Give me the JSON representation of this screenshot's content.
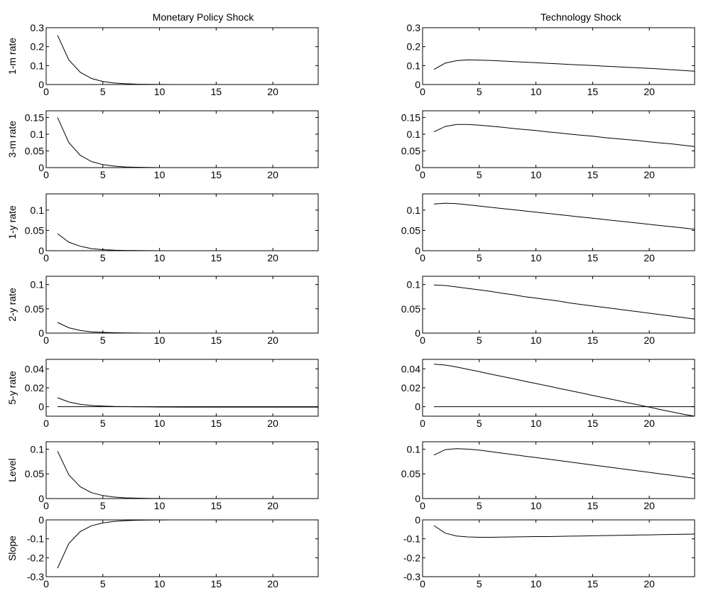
{
  "columns": [
    "Monetary Policy Shock",
    "Technology Shock"
  ],
  "chart_data": [
    {
      "type": "line",
      "column": "Monetary Policy Shock",
      "ylabel": "1-m rate",
      "xlim": [
        0,
        24
      ],
      "ylim": [
        0,
        0.3
      ],
      "yticks": [
        0,
        0.1,
        0.2,
        0.3
      ],
      "xticks": [
        0,
        5,
        10,
        15,
        20
      ],
      "zero_line": false,
      "series": [
        {
          "x": [
            1,
            2,
            3,
            4,
            5,
            6,
            7,
            8,
            9,
            10,
            11,
            12,
            13,
            14,
            15,
            16,
            17,
            18,
            19,
            20,
            21,
            22,
            23,
            24
          ],
          "y": [
            0.26,
            0.13,
            0.065,
            0.032,
            0.016,
            0.008,
            0.004,
            0.002,
            0.001,
            0.0005,
            0,
            0,
            0,
            0,
            0,
            0,
            0,
            0,
            0,
            0,
            0,
            0,
            0,
            0
          ]
        }
      ]
    },
    {
      "type": "line",
      "column": "Technology Shock",
      "ylabel": "",
      "xlim": [
        0,
        24
      ],
      "ylim": [
        0,
        0.3
      ],
      "yticks": [
        0,
        0.1,
        0.2,
        0.3
      ],
      "xticks": [
        0,
        5,
        10,
        15,
        20
      ],
      "zero_line": false,
      "series": [
        {
          "x": [
            1,
            2,
            3,
            4,
            5,
            6,
            7,
            8,
            9,
            10,
            11,
            12,
            13,
            14,
            15,
            16,
            17,
            18,
            19,
            20,
            21,
            22,
            23,
            24
          ],
          "y": [
            0.08,
            0.113,
            0.126,
            0.13,
            0.129,
            0.127,
            0.124,
            0.121,
            0.118,
            0.115,
            0.112,
            0.109,
            0.106,
            0.103,
            0.1,
            0.097,
            0.094,
            0.091,
            0.088,
            0.085,
            0.082,
            0.078,
            0.074,
            0.07
          ]
        }
      ]
    },
    {
      "type": "line",
      "column": "Monetary Policy Shock",
      "ylabel": "3-m rate",
      "xlim": [
        0,
        24
      ],
      "ylim": [
        0,
        0.17
      ],
      "yticks": [
        0,
        0.05,
        0.1,
        0.15
      ],
      "xticks": [
        0,
        5,
        10,
        15,
        20
      ],
      "zero_line": false,
      "series": [
        {
          "x": [
            1,
            2,
            3,
            4,
            5,
            6,
            7,
            8,
            9,
            10,
            11,
            12,
            13,
            14,
            15,
            16,
            17,
            18,
            19,
            20,
            21,
            22,
            23,
            24
          ],
          "y": [
            0.15,
            0.075,
            0.037,
            0.018,
            0.009,
            0.0045,
            0.002,
            0.001,
            0.0005,
            0,
            0,
            0,
            0,
            0,
            0,
            0,
            0,
            0,
            0,
            0,
            0,
            0,
            0,
            0
          ]
        }
      ]
    },
    {
      "type": "line",
      "column": "Technology Shock",
      "ylabel": "",
      "xlim": [
        0,
        24
      ],
      "ylim": [
        0,
        0.17
      ],
      "yticks": [
        0,
        0.05,
        0.1,
        0.15
      ],
      "xticks": [
        0,
        5,
        10,
        15,
        20
      ],
      "zero_line": false,
      "series": [
        {
          "x": [
            1,
            2,
            3,
            4,
            5,
            6,
            7,
            8,
            9,
            10,
            11,
            12,
            13,
            14,
            15,
            16,
            17,
            18,
            19,
            20,
            21,
            22,
            23,
            24
          ],
          "y": [
            0.107,
            0.123,
            0.129,
            0.129,
            0.127,
            0.124,
            0.121,
            0.117,
            0.114,
            0.111,
            0.107,
            0.104,
            0.1,
            0.097,
            0.094,
            0.09,
            0.087,
            0.084,
            0.081,
            0.077,
            0.074,
            0.071,
            0.067,
            0.063
          ]
        }
      ]
    },
    {
      "type": "line",
      "column": "Monetary Policy Shock",
      "ylabel": "1-y rate",
      "xlim": [
        0,
        24
      ],
      "ylim": [
        0,
        0.14
      ],
      "yticks": [
        0,
        0.05,
        0.1
      ],
      "xticks": [
        0,
        5,
        10,
        15,
        20
      ],
      "zero_line": false,
      "series": [
        {
          "x": [
            1,
            2,
            3,
            4,
            5,
            6,
            7,
            8,
            9,
            10,
            11,
            12,
            13,
            14,
            15,
            16,
            17,
            18,
            19,
            20,
            21,
            22,
            23,
            24
          ],
          "y": [
            0.042,
            0.021,
            0.011,
            0.005,
            0.0027,
            0.0013,
            0.0007,
            0.0003,
            0.0002,
            0,
            0,
            0,
            0,
            0,
            0,
            0,
            0,
            0,
            0,
            0,
            0,
            0,
            0,
            0
          ]
        }
      ]
    },
    {
      "type": "line",
      "column": "Technology Shock",
      "ylabel": "",
      "xlim": [
        0,
        24
      ],
      "ylim": [
        0,
        0.14
      ],
      "yticks": [
        0,
        0.05,
        0.1
      ],
      "xticks": [
        0,
        5,
        10,
        15,
        20
      ],
      "zero_line": false,
      "series": [
        {
          "x": [
            1,
            2,
            3,
            4,
            5,
            6,
            7,
            8,
            9,
            10,
            11,
            12,
            13,
            14,
            15,
            16,
            17,
            18,
            19,
            20,
            21,
            22,
            23,
            24
          ],
          "y": [
            0.115,
            0.117,
            0.116,
            0.113,
            0.11,
            0.107,
            0.104,
            0.101,
            0.098,
            0.095,
            0.092,
            0.089,
            0.086,
            0.083,
            0.08,
            0.077,
            0.074,
            0.071,
            0.068,
            0.065,
            0.062,
            0.059,
            0.056,
            0.053
          ]
        }
      ]
    },
    {
      "type": "line",
      "column": "Monetary Policy Shock",
      "ylabel": "2-y rate",
      "xlim": [
        0,
        24
      ],
      "ylim": [
        0,
        0.117
      ],
      "yticks": [
        0,
        0.05,
        0.1
      ],
      "xticks": [
        0,
        5,
        10,
        15,
        20
      ],
      "zero_line": false,
      "series": [
        {
          "x": [
            1,
            2,
            3,
            4,
            5,
            6,
            7,
            8,
            9,
            10,
            11,
            12,
            13,
            14,
            15,
            16,
            17,
            18,
            19,
            20,
            21,
            22,
            23,
            24
          ],
          "y": [
            0.022,
            0.011,
            0.0055,
            0.0027,
            0.0014,
            0.0007,
            0.0003,
            0.0002,
            0,
            0,
            0,
            0,
            0,
            0,
            0,
            0,
            0,
            0,
            0,
            0,
            0,
            0,
            0,
            0
          ]
        }
      ]
    },
    {
      "type": "line",
      "column": "Technology Shock",
      "ylabel": "",
      "xlim": [
        0,
        24
      ],
      "ylim": [
        0,
        0.117
      ],
      "yticks": [
        0,
        0.05,
        0.1
      ],
      "xticks": [
        0,
        5,
        10,
        15,
        20
      ],
      "zero_line": false,
      "series": [
        {
          "x": [
            1,
            2,
            3,
            4,
            5,
            6,
            7,
            8,
            9,
            10,
            11,
            12,
            13,
            14,
            15,
            16,
            17,
            18,
            19,
            20,
            21,
            22,
            23,
            24
          ],
          "y": [
            0.099,
            0.098,
            0.095,
            0.092,
            0.089,
            0.086,
            0.082,
            0.079,
            0.075,
            0.072,
            0.069,
            0.066,
            0.062,
            0.059,
            0.056,
            0.053,
            0.05,
            0.047,
            0.044,
            0.041,
            0.038,
            0.035,
            0.032,
            0.029
          ]
        }
      ]
    },
    {
      "type": "line",
      "column": "Monetary Policy Shock",
      "ylabel": "5-y rate",
      "xlim": [
        0,
        24
      ],
      "ylim": [
        -0.01,
        0.05
      ],
      "yticks": [
        0,
        0.02,
        0.04
      ],
      "xticks": [
        0,
        5,
        10,
        15,
        20
      ],
      "zero_line": true,
      "series": [
        {
          "x": [
            1,
            2,
            3,
            4,
            5,
            6,
            7,
            8,
            9,
            10,
            11,
            12,
            13,
            14,
            15,
            16,
            17,
            18,
            19,
            20,
            21,
            22,
            23,
            24
          ],
          "y": [
            0.0095,
            0.005,
            0.0025,
            0.0013,
            0.0007,
            0.0003,
            0.0001,
            0,
            -0.0002,
            -0.0003,
            -0.0003,
            -0.0004,
            -0.0004,
            -0.0004,
            -0.0005,
            -0.0005,
            -0.0005,
            -0.0005,
            -0.0005,
            -0.0005,
            -0.0005,
            -0.0005,
            -0.0005,
            -0.0005
          ]
        }
      ]
    },
    {
      "type": "line",
      "column": "Technology Shock",
      "ylabel": "",
      "xlim": [
        0,
        24
      ],
      "ylim": [
        -0.01,
        0.05
      ],
      "yticks": [
        0,
        0.02,
        0.04
      ],
      "xticks": [
        0,
        5,
        10,
        15,
        20
      ],
      "zero_line": true,
      "series": [
        {
          "x": [
            1,
            2,
            3,
            4,
            5,
            6,
            7,
            8,
            9,
            10,
            11,
            12,
            13,
            14,
            15,
            16,
            17,
            18,
            19,
            20,
            21,
            22,
            23,
            24
          ],
          "y": [
            0.045,
            0.044,
            0.042,
            0.0395,
            0.037,
            0.0345,
            0.032,
            0.0295,
            0.027,
            0.0245,
            0.022,
            0.0195,
            0.017,
            0.0145,
            0.012,
            0.0095,
            0.007,
            0.0045,
            0.002,
            -0.0005,
            -0.003,
            -0.0055,
            -0.008,
            -0.0105
          ]
        }
      ]
    },
    {
      "type": "line",
      "column": "Monetary Policy Shock",
      "ylabel": "Level",
      "xlim": [
        0,
        24
      ],
      "ylim": [
        0,
        0.115
      ],
      "yticks": [
        0,
        0.05,
        0.1
      ],
      "xticks": [
        0,
        5,
        10,
        15,
        20
      ],
      "zero_line": false,
      "series": [
        {
          "x": [
            1,
            2,
            3,
            4,
            5,
            6,
            7,
            8,
            9,
            10,
            11,
            12,
            13,
            14,
            15,
            16,
            17,
            18,
            19,
            20,
            21,
            22,
            23,
            24
          ],
          "y": [
            0.096,
            0.048,
            0.024,
            0.012,
            0.006,
            0.003,
            0.0015,
            0.0008,
            0.0004,
            0.0002,
            0,
            0,
            0,
            0,
            0,
            0,
            0,
            0,
            0,
            0,
            0,
            0,
            0,
            0
          ]
        }
      ]
    },
    {
      "type": "line",
      "column": "Technology Shock",
      "ylabel": "",
      "xlim": [
        0,
        24
      ],
      "ylim": [
        0,
        0.115
      ],
      "yticks": [
        0,
        0.05,
        0.1
      ],
      "xticks": [
        0,
        5,
        10,
        15,
        20
      ],
      "zero_line": false,
      "series": [
        {
          "x": [
            1,
            2,
            3,
            4,
            5,
            6,
            7,
            8,
            9,
            10,
            11,
            12,
            13,
            14,
            15,
            16,
            17,
            18,
            19,
            20,
            21,
            22,
            23,
            24
          ],
          "y": [
            0.088,
            0.099,
            0.101,
            0.1,
            0.098,
            0.095,
            0.092,
            0.089,
            0.086,
            0.083,
            0.08,
            0.077,
            0.074,
            0.071,
            0.068,
            0.065,
            0.062,
            0.059,
            0.056,
            0.053,
            0.05,
            0.047,
            0.044,
            0.041
          ]
        }
      ]
    },
    {
      "type": "line",
      "column": "Monetary Policy Shock",
      "ylabel": "Slope",
      "xlim": [
        0,
        24
      ],
      "ylim": [
        -0.3,
        0
      ],
      "yticks": [
        -0.3,
        -0.2,
        -0.1,
        0
      ],
      "xticks": [
        0,
        5,
        10,
        15,
        20
      ],
      "zero_line": false,
      "series": [
        {
          "x": [
            1,
            2,
            3,
            4,
            5,
            6,
            7,
            8,
            9,
            10,
            11,
            12,
            13,
            14,
            15,
            16,
            17,
            18,
            19,
            20,
            21,
            22,
            23,
            24
          ],
          "y": [
            -0.255,
            -0.125,
            -0.062,
            -0.031,
            -0.016,
            -0.008,
            -0.004,
            -0.002,
            -0.001,
            -0.0005,
            0,
            0,
            0,
            0,
            0,
            0,
            0,
            0,
            0,
            0,
            0,
            0,
            0,
            0
          ]
        }
      ]
    },
    {
      "type": "line",
      "column": "Technology Shock",
      "ylabel": "",
      "xlim": [
        0,
        24
      ],
      "ylim": [
        -0.3,
        0
      ],
      "yticks": [
        -0.3,
        -0.2,
        -0.1,
        0
      ],
      "xticks": [
        0,
        5,
        10,
        15,
        20
      ],
      "zero_line": false,
      "series": [
        {
          "x": [
            1,
            2,
            3,
            4,
            5,
            6,
            7,
            8,
            9,
            10,
            11,
            12,
            13,
            14,
            15,
            16,
            17,
            18,
            19,
            20,
            21,
            22,
            23,
            24
          ],
          "y": [
            -0.03,
            -0.07,
            -0.085,
            -0.09,
            -0.092,
            -0.092,
            -0.091,
            -0.09,
            -0.089,
            -0.088,
            -0.088,
            -0.087,
            -0.086,
            -0.085,
            -0.084,
            -0.083,
            -0.082,
            -0.081,
            -0.08,
            -0.079,
            -0.078,
            -0.077,
            -0.076,
            -0.075
          ]
        }
      ]
    }
  ]
}
